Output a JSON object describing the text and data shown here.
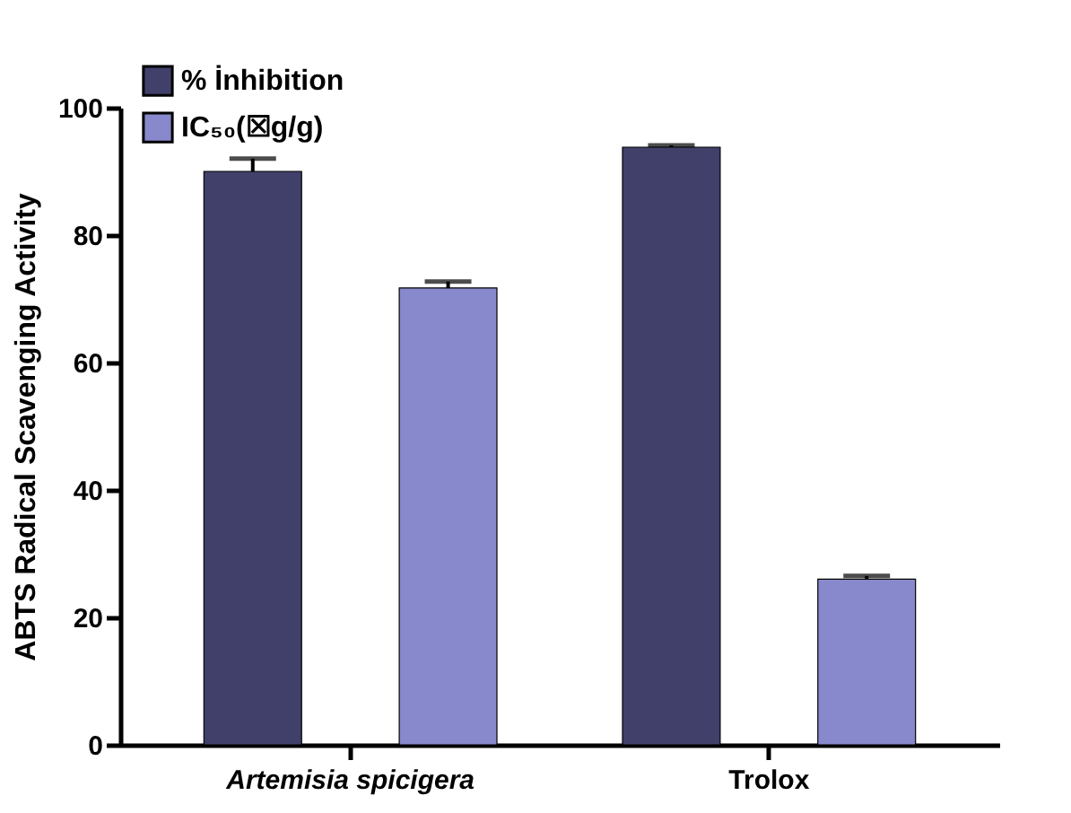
{
  "chart_data": {
    "type": "bar",
    "ylabel": "ABTS Radical Scavenging Activity",
    "categories": [
      "Artemisia spicigera",
      "Trolox"
    ],
    "series": [
      {
        "name": "% İnhibition",
        "color": "#40406a",
        "values": [
          90,
          93.8
        ],
        "errors": [
          2,
          0.3
        ]
      },
      {
        "name": "IC₅₀(☒g/g)",
        "color": "#8888cc",
        "values": [
          71.7,
          26
        ],
        "errors": [
          1,
          0.5
        ]
      }
    ],
    "ylim": [
      0,
      100
    ],
    "yticks": [
      0,
      20,
      40,
      60,
      80,
      100
    ],
    "grid": false,
    "legend": "top left"
  }
}
